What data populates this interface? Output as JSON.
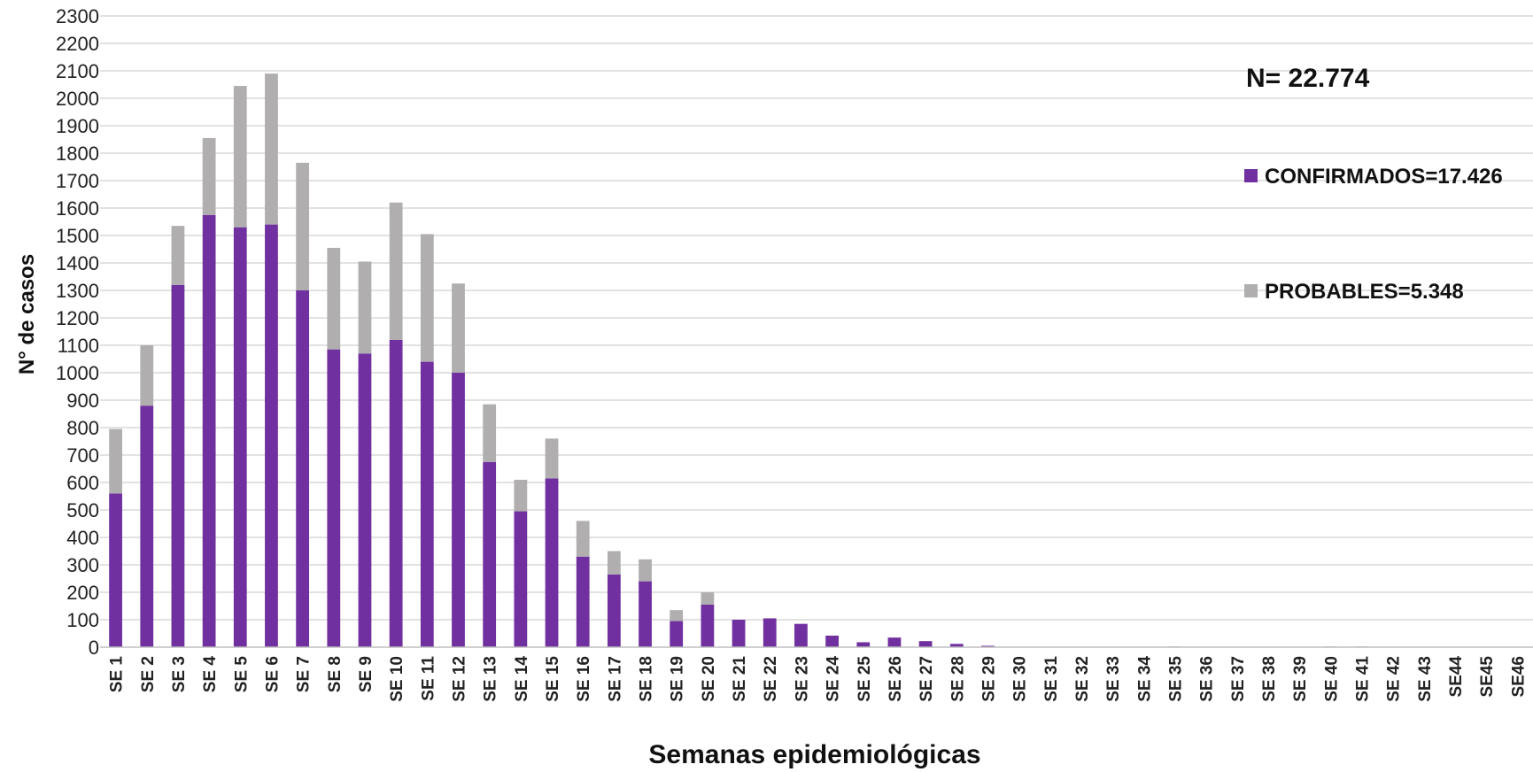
{
  "chart_data": {
    "type": "bar",
    "stacked": true,
    "categories": [
      "SE 1",
      "SE 2",
      "SE 3",
      "SE 4",
      "SE 5",
      "SE 6",
      "SE 7",
      "SE 8",
      "SE 9",
      "SE 10",
      "SE 11",
      "SE 12",
      "SE 13",
      "SE 14",
      "SE 15",
      "SE 16",
      "SE 17",
      "SE 18",
      "SE 19",
      "SE 20",
      "SE 21",
      "SE 22",
      "SE 23",
      "SE 24",
      "SE 25",
      "SE 26",
      "SE 27",
      "SE 28",
      "SE 29",
      "SE 30",
      "SE 31",
      "SE 32",
      "SE 33",
      "SE 34",
      "SE 35",
      "SE 36",
      "SE 37",
      "SE 38",
      "SE 39",
      "SE 40",
      "SE 41",
      "SE 42",
      "SE 43",
      "SE44",
      "SE45",
      "SE46"
    ],
    "series": [
      {
        "name": "CONFIRMADOS=17.426",
        "color": "#7030a0",
        "values": [
          560,
          880,
          1320,
          1575,
          1530,
          1540,
          1300,
          1085,
          1070,
          1120,
          1040,
          1000,
          675,
          495,
          615,
          330,
          265,
          240,
          95,
          155,
          100,
          105,
          85,
          42,
          18,
          35,
          22,
          12,
          5,
          0,
          0,
          0,
          0,
          0,
          0,
          0,
          0,
          0,
          0,
          0,
          0,
          0,
          0,
          0,
          0,
          0
        ]
      },
      {
        "name": "PROBABLES=5.348",
        "color": "#b0aeae",
        "values": [
          235,
          220,
          215,
          280,
          515,
          550,
          465,
          370,
          335,
          500,
          465,
          325,
          210,
          115,
          145,
          130,
          85,
          80,
          40,
          45,
          0,
          0,
          0,
          0,
          0,
          0,
          0,
          0,
          0,
          0,
          0,
          0,
          0,
          0,
          3,
          0,
          0,
          0,
          0,
          3,
          3,
          0,
          0,
          0,
          0,
          0
        ]
      }
    ],
    "xlabel": "Semanas epidemiológicas",
    "ylabel": "N° de casos",
    "ylim": [
      0,
      2300
    ],
    "yticks": [
      0,
      100,
      200,
      300,
      400,
      500,
      600,
      700,
      800,
      900,
      1000,
      1100,
      1200,
      1300,
      1400,
      1500,
      1600,
      1700,
      1800,
      1900,
      2000,
      2100,
      2200,
      2300
    ],
    "grid": true,
    "annotation": "N= 22.774",
    "legend_position": "right"
  }
}
